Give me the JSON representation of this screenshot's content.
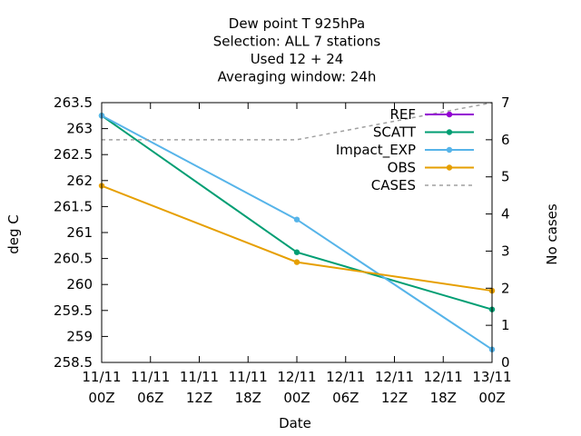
{
  "chart_data": {
    "type": "line",
    "title_lines": [
      "Dew point T 925hPa",
      "Selection: ALL      7 stations",
      "Used  12 + 24",
      "Averaging window: 24h"
    ],
    "xlabel": "Date",
    "ylabel": "deg C",
    "y2label": "No cases",
    "x_ticks": [
      {
        "day": "11/11",
        "hour": "00Z"
      },
      {
        "day": "11/11",
        "hour": "06Z"
      },
      {
        "day": "11/11",
        "hour": "12Z"
      },
      {
        "day": "11/11",
        "hour": "18Z"
      },
      {
        "day": "12/11",
        "hour": "00Z"
      },
      {
        "day": "12/11",
        "hour": "06Z"
      },
      {
        "day": "12/11",
        "hour": "12Z"
      },
      {
        "day": "12/11",
        "hour": "18Z"
      },
      {
        "day": "13/11",
        "hour": "00Z"
      }
    ],
    "xlim": [
      "11/11 00Z",
      "13/11 00Z"
    ],
    "y_ticks": [
      "258.5",
      "259",
      "259.5",
      "260",
      "260.5",
      "261",
      "261.5",
      "262",
      "262.5",
      "263",
      "263.5"
    ],
    "ylim": [
      258.5,
      263.5
    ],
    "y2_ticks": [
      "0",
      "1",
      "2",
      "3",
      "4",
      "5",
      "6",
      "7"
    ],
    "y2lim": [
      0,
      7
    ],
    "legend_position": "top-right",
    "series": [
      {
        "name": "REF",
        "color": "#9400d3",
        "axis": "left",
        "marker": "plus",
        "x": [],
        "y": []
      },
      {
        "name": "SCATT",
        "color": "#009e73",
        "axis": "left",
        "marker": "plus",
        "x": [
          "11/11 00Z",
          "12/11 00Z",
          "13/11 00Z"
        ],
        "y": [
          263.25,
          260.62,
          259.52
        ]
      },
      {
        "name": "Impact_EXP",
        "color": "#56b4e9",
        "axis": "left",
        "marker": "plus",
        "x": [
          "11/11 00Z",
          "12/11 00Z",
          "13/11 00Z"
        ],
        "y": [
          263.25,
          261.25,
          258.75
        ]
      },
      {
        "name": "OBS",
        "color": "#e69f00",
        "axis": "left",
        "marker": "plus",
        "x": [
          "11/11 00Z",
          "12/11 00Z",
          "13/11 00Z"
        ],
        "y": [
          261.9,
          260.43,
          259.88
        ]
      },
      {
        "name": "CASES",
        "color": "#a0a0a0",
        "axis": "right",
        "dashed": true,
        "x": [
          "11/11 00Z",
          "12/11 00Z",
          "13/11 00Z"
        ],
        "y": [
          6,
          6,
          7
        ]
      }
    ]
  }
}
